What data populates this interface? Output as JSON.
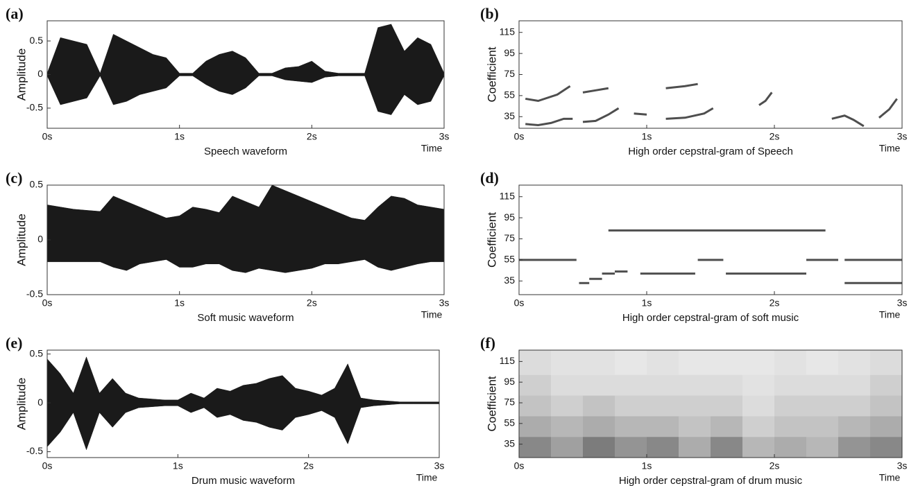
{
  "chart_data": [
    {
      "panel": "(a)",
      "type": "waveform",
      "title": "Speech waveform",
      "ylabel": "Amplitude",
      "xlabel": "Time",
      "color": "#1a1a1a",
      "xlim": [
        0,
        3
      ],
      "xticks": [
        {
          "value": 0,
          "label": "0s"
        },
        {
          "value": 1,
          "label": "1s"
        },
        {
          "value": 2,
          "label": "2s"
        },
        {
          "value": 3,
          "label": "3s"
        }
      ],
      "ylim": [
        -0.8,
        0.8
      ],
      "yticks": [
        -0.5,
        0,
        0.5
      ],
      "x": [
        0,
        0.1,
        0.2,
        0.3,
        0.4,
        0.5,
        0.6,
        0.7,
        0.8,
        0.9,
        1.0,
        1.1,
        1.2,
        1.3,
        1.4,
        1.5,
        1.6,
        1.7,
        1.8,
        1.9,
        2.0,
        2.1,
        2.2,
        2.3,
        2.4,
        2.5,
        2.6,
        2.7,
        2.8,
        2.9,
        3.0
      ],
      "high": [
        0.02,
        0.55,
        0.5,
        0.45,
        0.02,
        0.6,
        0.5,
        0.4,
        0.3,
        0.25,
        0.02,
        0.02,
        0.2,
        0.3,
        0.35,
        0.25,
        0.02,
        0.02,
        0.1,
        0.12,
        0.2,
        0.05,
        0.02,
        0.02,
        0.02,
        0.7,
        0.75,
        0.35,
        0.55,
        0.45,
        0.02
      ],
      "low": [
        -0.02,
        -0.45,
        -0.4,
        -0.35,
        -0.02,
        -0.45,
        -0.4,
        -0.3,
        -0.25,
        -0.2,
        -0.02,
        -0.02,
        -0.15,
        -0.25,
        -0.3,
        -0.2,
        -0.02,
        -0.02,
        -0.08,
        -0.1,
        -0.12,
        -0.04,
        -0.02,
        -0.02,
        -0.02,
        -0.55,
        -0.6,
        -0.3,
        -0.45,
        -0.4,
        -0.02
      ]
    },
    {
      "panel": "(b)",
      "type": "traces",
      "title": "High order cepstral-gram of Speech",
      "ylabel": "Coefficient",
      "xlabel": "Time",
      "color": "#222222",
      "xlim": [
        0,
        3
      ],
      "xticks": [
        {
          "value": 0,
          "label": "0s"
        },
        {
          "value": 1,
          "label": "1s"
        },
        {
          "value": 2,
          "label": "2s"
        },
        {
          "value": 3,
          "label": "3s"
        }
      ],
      "ylim": [
        24,
        126
      ],
      "yticks": [
        35,
        55,
        75,
        95,
        115
      ],
      "traces": [
        {
          "x": [
            0.05,
            0.15,
            0.25,
            0.35,
            0.42
          ],
          "y": [
            28,
            27,
            29,
            33,
            33
          ]
        },
        {
          "x": [
            0.05,
            0.15,
            0.3,
            0.4
          ],
          "y": [
            52,
            50,
            56,
            64
          ]
        },
        {
          "x": [
            0.5,
            0.6,
            0.7,
            0.78
          ],
          "y": [
            30,
            31,
            37,
            43
          ]
        },
        {
          "x": [
            0.5,
            0.6,
            0.7
          ],
          "y": [
            58,
            60,
            62
          ]
        },
        {
          "x": [
            0.9,
            1.0
          ],
          "y": [
            38,
            37
          ]
        },
        {
          "x": [
            1.15,
            1.3,
            1.45,
            1.52
          ],
          "y": [
            33,
            34,
            38,
            43
          ]
        },
        {
          "x": [
            1.15,
            1.3,
            1.4
          ],
          "y": [
            62,
            64,
            66
          ]
        },
        {
          "x": [
            1.88,
            1.93,
            1.98
          ],
          "y": [
            46,
            50,
            58
          ]
        },
        {
          "x": [
            2.45,
            2.55,
            2.62,
            2.7
          ],
          "y": [
            33,
            36,
            32,
            26
          ]
        },
        {
          "x": [
            2.82,
            2.9,
            2.96
          ],
          "y": [
            34,
            42,
            52
          ]
        }
      ]
    },
    {
      "panel": "(c)",
      "type": "waveform",
      "title": "Soft music waveform",
      "ylabel": "Amplitude",
      "xlabel": "Time",
      "color": "#1a1a1a",
      "xlim": [
        0,
        3
      ],
      "xticks": [
        {
          "value": 0,
          "label": "0s"
        },
        {
          "value": 1,
          "label": "1s"
        },
        {
          "value": 2,
          "label": "2s"
        },
        {
          "value": 3,
          "label": "3s"
        }
      ],
      "ylim": [
        -0.5,
        0.5
      ],
      "yticks": [
        -0.5,
        0,
        0.5
      ],
      "x": [
        0,
        0.1,
        0.2,
        0.3,
        0.4,
        0.5,
        0.6,
        0.7,
        0.8,
        0.9,
        1.0,
        1.1,
        1.2,
        1.3,
        1.4,
        1.5,
        1.6,
        1.7,
        1.8,
        1.9,
        2.0,
        2.1,
        2.2,
        2.3,
        2.4,
        2.5,
        2.6,
        2.7,
        2.8,
        2.9,
        3.0
      ],
      "high": [
        0.32,
        0.3,
        0.28,
        0.27,
        0.26,
        0.4,
        0.35,
        0.3,
        0.25,
        0.2,
        0.22,
        0.3,
        0.28,
        0.25,
        0.4,
        0.35,
        0.3,
        0.5,
        0.45,
        0.4,
        0.35,
        0.3,
        0.25,
        0.2,
        0.18,
        0.3,
        0.4,
        0.38,
        0.32,
        0.3,
        0.28
      ],
      "low": [
        -0.2,
        -0.2,
        -0.2,
        -0.2,
        -0.2,
        -0.25,
        -0.28,
        -0.22,
        -0.2,
        -0.18,
        -0.25,
        -0.25,
        -0.22,
        -0.22,
        -0.28,
        -0.3,
        -0.26,
        -0.28,
        -0.3,
        -0.28,
        -0.26,
        -0.22,
        -0.22,
        -0.2,
        -0.18,
        -0.25,
        -0.28,
        -0.25,
        -0.22,
        -0.2,
        -0.2
      ]
    },
    {
      "panel": "(d)",
      "type": "traces",
      "title": "High order cepstral-gram of soft music",
      "ylabel": "Coefficient",
      "xlabel": "Time",
      "color": "#222222",
      "xlim": [
        0,
        3
      ],
      "xticks": [
        {
          "value": 0,
          "label": "0s"
        },
        {
          "value": 1,
          "label": "1s"
        },
        {
          "value": 2,
          "label": "2s"
        },
        {
          "value": 3,
          "label": "3s"
        }
      ],
      "ylim": [
        22,
        126
      ],
      "yticks": [
        35,
        55,
        75,
        95,
        115
      ],
      "traces": [
        {
          "x": [
            0,
            0.45
          ],
          "y": [
            55,
            55
          ]
        },
        {
          "x": [
            0.47,
            0.55
          ],
          "y": [
            33,
            33
          ]
        },
        {
          "x": [
            0.55,
            0.65
          ],
          "y": [
            37,
            37
          ]
        },
        {
          "x": [
            0.65,
            0.75
          ],
          "y": [
            42,
            42
          ]
        },
        {
          "x": [
            0.75,
            0.85
          ],
          "y": [
            44,
            44
          ]
        },
        {
          "x": [
            0.95,
            1.38
          ],
          "y": [
            42,
            42
          ]
        },
        {
          "x": [
            1.4,
            1.6
          ],
          "y": [
            55,
            55
          ]
        },
        {
          "x": [
            1.62,
            2.25
          ],
          "y": [
            42,
            42
          ]
        },
        {
          "x": [
            2.25,
            2.5
          ],
          "y": [
            55,
            55
          ]
        },
        {
          "x": [
            2.55,
            3
          ],
          "y": [
            33,
            33
          ]
        },
        {
          "x": [
            2.55,
            3
          ],
          "y": [
            55,
            55
          ]
        },
        {
          "x": [
            0.7,
            2.4
          ],
          "y": [
            83,
            83
          ]
        }
      ]
    },
    {
      "panel": "(e)",
      "type": "waveform",
      "title": "Drum music waveform",
      "ylabel": "Amplitude",
      "xlabel": "Time",
      "color": "#1a1a1a",
      "xlim": [
        0,
        3
      ],
      "xticks": [
        {
          "value": 0,
          "label": "0s"
        },
        {
          "value": 1,
          "label": "1s"
        },
        {
          "value": 2,
          "label": "2s"
        },
        {
          "value": 3,
          "label": "3s"
        }
      ],
      "ylim": [
        -0.56,
        0.54
      ],
      "yticks": [
        -0.5,
        0,
        0.5
      ],
      "x": [
        0,
        0.1,
        0.2,
        0.3,
        0.4,
        0.5,
        0.6,
        0.7,
        0.8,
        0.9,
        1.0,
        1.1,
        1.2,
        1.3,
        1.4,
        1.5,
        1.6,
        1.7,
        1.8,
        1.9,
        2.0,
        2.1,
        2.2,
        2.3,
        2.4,
        2.5,
        2.6,
        2.7,
        2.8,
        2.9,
        3.0
      ],
      "high": [
        0.45,
        0.3,
        0.1,
        0.47,
        0.1,
        0.25,
        0.1,
        0.05,
        0.04,
        0.03,
        0.03,
        0.1,
        0.05,
        0.15,
        0.12,
        0.18,
        0.2,
        0.25,
        0.28,
        0.15,
        0.12,
        0.08,
        0.15,
        0.4,
        0.05,
        0.03,
        0.02,
        0.01,
        0.01,
        0.01,
        0.01
      ],
      "low": [
        -0.45,
        -0.3,
        -0.1,
        -0.48,
        -0.1,
        -0.25,
        -0.1,
        -0.05,
        -0.04,
        -0.03,
        -0.03,
        -0.1,
        -0.05,
        -0.15,
        -0.12,
        -0.18,
        -0.2,
        -0.25,
        -0.28,
        -0.15,
        -0.12,
        -0.08,
        -0.15,
        -0.42,
        -0.05,
        -0.03,
        -0.02,
        -0.01,
        -0.01,
        -0.01,
        -0.01
      ]
    },
    {
      "panel": "(f)",
      "type": "heatmap",
      "title": "High order cepstral-gram of drum music",
      "ylabel": "Coefficient",
      "xlabel": "Time",
      "color": "#111111",
      "xlim": [
        0,
        3
      ],
      "xticks": [
        {
          "value": 0,
          "label": "0s"
        },
        {
          "value": 1,
          "label": "1s"
        },
        {
          "value": 2,
          "label": "2s"
        },
        {
          "value": 3,
          "label": "3s"
        }
      ],
      "ylim": [
        22,
        126
      ],
      "yticks": [
        35,
        55,
        75,
        95,
        115
      ],
      "xbins": [
        0,
        0.25,
        0.5,
        0.75,
        1,
        1.25,
        1.5,
        1.75,
        2,
        2.25,
        2.5,
        2.75,
        3
      ],
      "ybins": [
        22,
        42,
        62,
        82,
        102,
        126
      ],
      "z": [
        [
          0.5,
          0.4,
          0.55,
          0.45,
          0.5,
          0.35,
          0.5,
          0.3,
          0.35,
          0.3,
          0.45,
          0.5
        ],
        [
          0.35,
          0.3,
          0.35,
          0.3,
          0.3,
          0.25,
          0.3,
          0.2,
          0.25,
          0.25,
          0.3,
          0.35
        ],
        [
          0.25,
          0.2,
          0.25,
          0.2,
          0.2,
          0.2,
          0.2,
          0.15,
          0.2,
          0.2,
          0.2,
          0.25
        ],
        [
          0.2,
          0.15,
          0.15,
          0.15,
          0.15,
          0.15,
          0.15,
          0.12,
          0.15,
          0.15,
          0.15,
          0.2
        ],
        [
          0.15,
          0.12,
          0.12,
          0.1,
          0.12,
          0.1,
          0.1,
          0.1,
          0.12,
          0.1,
          0.12,
          0.15
        ]
      ]
    }
  ]
}
